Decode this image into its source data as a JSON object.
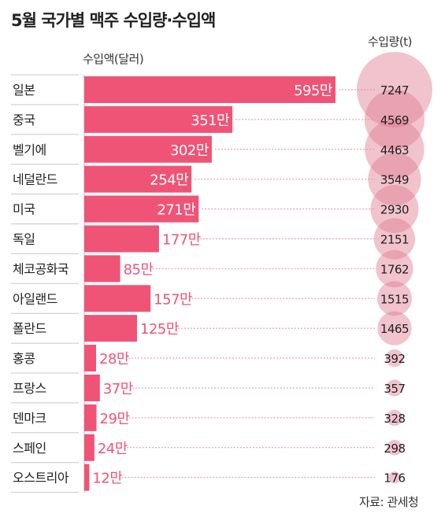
{
  "title": "5월 국가별 맥주 수입량·수입액",
  "value_label": "수입액(달러)",
  "volume_label": "수입량(t)",
  "source": "자료: 관세청",
  "unit_suffix": "만",
  "colors": {
    "bar": "#ef5476",
    "bar_label_outside": "#ef5476",
    "bar_label_inside": "#ffffff",
    "bubble": "#e17b8f",
    "leader_line": "#e98aa0",
    "row_divider": "#c8c8c8"
  },
  "chart_data": [
    {
      "type": "bar",
      "title": "5월 국가별 맥주 수입량·수입액",
      "ylabel": "수입액(달러)",
      "categories": [
        "일본",
        "중국",
        "벨기에",
        "네덜란드",
        "미국",
        "독일",
        "체코공화국",
        "아일랜드",
        "폴란드",
        "홍콩",
        "프랑스",
        "덴마크",
        "스페인",
        "오스트리아"
      ],
      "values": [
        595,
        351,
        302,
        254,
        271,
        177,
        85,
        157,
        125,
        28,
        37,
        29,
        24,
        12
      ],
      "value_labels": [
        "595만",
        "351만",
        "302만",
        "254만",
        "271만",
        "177만",
        "85만",
        "157만",
        "125만",
        "28만",
        "37만",
        "29만",
        "24만",
        "12만"
      ],
      "orientation": "horizontal",
      "xlim": [
        0,
        595
      ]
    },
    {
      "type": "scatter",
      "title": "수입량(t)",
      "categories": [
        "일본",
        "중국",
        "벨기에",
        "네덜란드",
        "미국",
        "독일",
        "체코공화국",
        "아일랜드",
        "폴란드",
        "홍콩",
        "프랑스",
        "덴마크",
        "스페인",
        "오스트리아"
      ],
      "values": [
        7247,
        4569,
        4463,
        3549,
        2930,
        2151,
        1762,
        1515,
        1465,
        392,
        357,
        328,
        298,
        176
      ],
      "encoding": "bubble area"
    }
  ]
}
